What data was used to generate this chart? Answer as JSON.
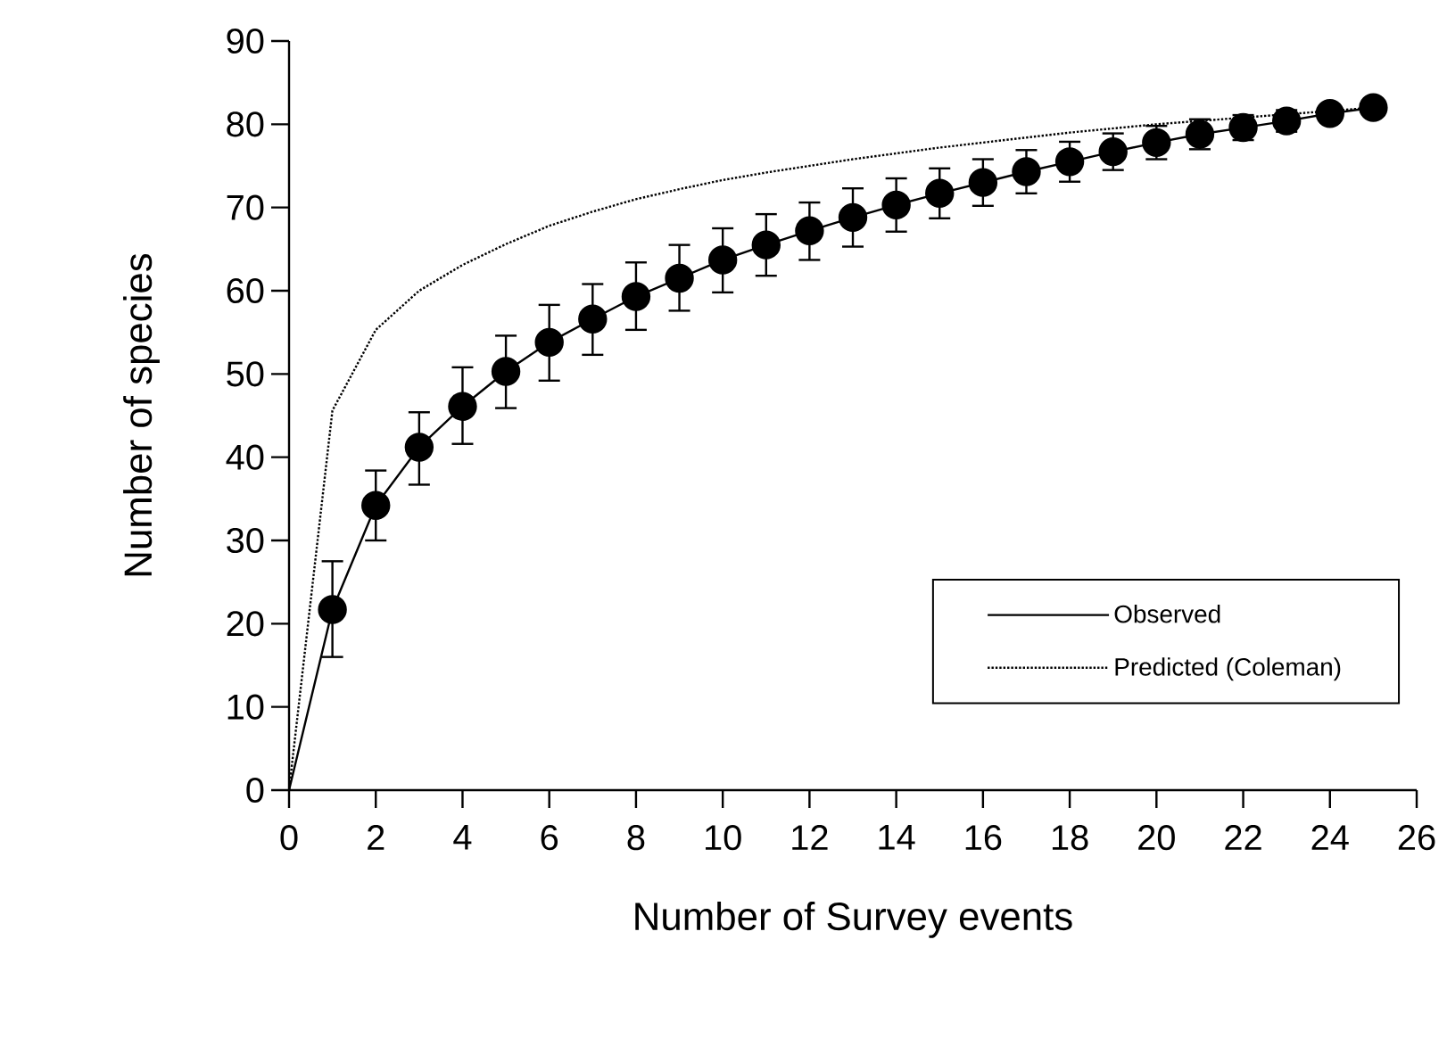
{
  "chart_data": {
    "type": "line",
    "xlabel": "Number of Survey events",
    "ylabel": "Number of species",
    "x": [
      0,
      1,
      2,
      3,
      4,
      5,
      6,
      7,
      8,
      9,
      10,
      11,
      12,
      13,
      14,
      15,
      16,
      17,
      18,
      19,
      20,
      21,
      22,
      23,
      24,
      25
    ],
    "xlim": [
      0,
      26
    ],
    "xticks": [
      0,
      2,
      4,
      6,
      8,
      10,
      12,
      14,
      16,
      18,
      20,
      22,
      24,
      26
    ],
    "ylim": [
      0,
      90
    ],
    "yticks": [
      0,
      10,
      20,
      30,
      40,
      50,
      60,
      70,
      80,
      90
    ],
    "legend": "bottom right",
    "series": [
      {
        "name": "Observed",
        "color": "#000000",
        "marker": "circle",
        "line_style": "solid",
        "values": [
          0,
          21.7,
          34.2,
          41.2,
          46.1,
          50.3,
          53.8,
          56.6,
          59.3,
          61.5,
          63.7,
          65.5,
          67.2,
          68.8,
          70.3,
          71.7,
          73.0,
          74.3,
          75.5,
          76.7,
          77.8,
          78.8,
          79.6,
          80.4,
          81.3,
          82.0
        ],
        "errors": [
          null,
          [
            16.0,
            27.5
          ],
          [
            30.0,
            38.4
          ],
          [
            36.7,
            45.4
          ],
          [
            41.6,
            50.8
          ],
          [
            45.9,
            54.6
          ],
          [
            49.2,
            58.3
          ],
          [
            52.3,
            60.8
          ],
          [
            55.3,
            63.4
          ],
          [
            57.6,
            65.5
          ],
          [
            59.8,
            67.5
          ],
          [
            61.8,
            69.2
          ],
          [
            63.7,
            70.6
          ],
          [
            65.3,
            72.3
          ],
          [
            67.1,
            73.5
          ],
          [
            68.7,
            74.7
          ],
          [
            70.2,
            75.8
          ],
          [
            71.7,
            76.9
          ],
          [
            73.1,
            77.9
          ],
          [
            74.5,
            78.9
          ],
          [
            75.8,
            79.8
          ],
          [
            77.0,
            80.6
          ],
          [
            78.1,
            81.1
          ],
          [
            79.1,
            81.7
          ],
          null,
          null
        ]
      },
      {
        "name": "Predicted (Coleman)",
        "color": "#000000",
        "marker": "none",
        "line_style": "dotted",
        "values": [
          0,
          45.6,
          55.3,
          60.0,
          63.1,
          65.6,
          67.8,
          69.5,
          71.0,
          72.2,
          73.3,
          74.2,
          75.0,
          75.8,
          76.5,
          77.2,
          77.8,
          78.4,
          79.0,
          79.5,
          80.0,
          80.4,
          80.8,
          81.2,
          81.6,
          82.0
        ]
      }
    ]
  }
}
